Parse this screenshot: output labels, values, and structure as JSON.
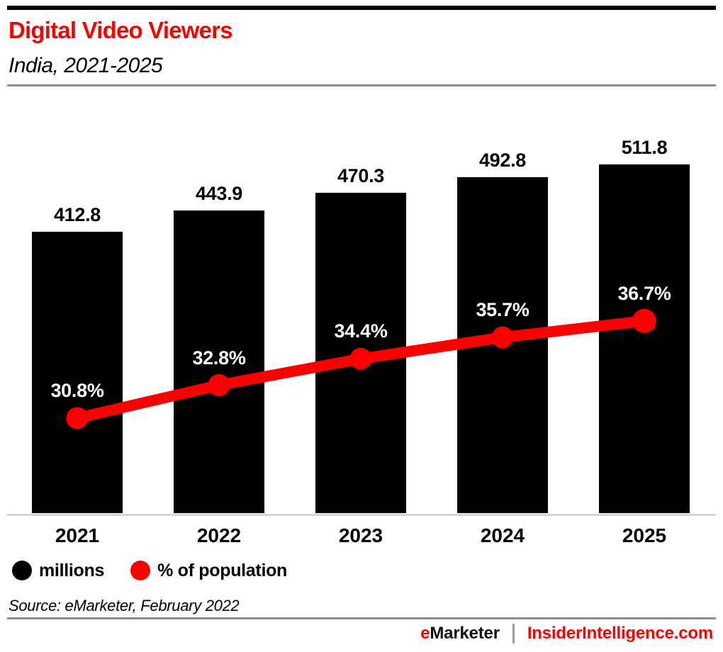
{
  "header": {
    "title": "Digital Video Viewers",
    "subtitle": "India, 2021-2025"
  },
  "legend": {
    "items": [
      {
        "label": "millions",
        "color": "#000000"
      },
      {
        "label": "% of population",
        "color": "#fa0000"
      }
    ]
  },
  "source": {
    "text": "Source: eMarketer, February 2022"
  },
  "footer": {
    "brand_first_letter": "e",
    "brand_rest": "Marketer",
    "separator_icon": "vertical-bar",
    "site": "InsiderIntelligence.com"
  },
  "colors": {
    "accent_red": "#fa0000",
    "bar_black": "#000000",
    "axis_line": "#cdd7e4",
    "divider_gray": "#8e8e8e",
    "value_label_white": "#ffffff"
  },
  "chart_data": {
    "type": "bar",
    "title": "Digital Video Viewers",
    "subtitle": "India, 2021-2025",
    "categories": [
      "2021",
      "2022",
      "2023",
      "2024",
      "2025"
    ],
    "series": [
      {
        "name": "millions",
        "type": "bar",
        "color": "#000000",
        "values": [
          412.8,
          443.9,
          470.3,
          492.8,
          511.8
        ]
      },
      {
        "name": "% of population",
        "type": "line",
        "color": "#fa0000",
        "values": [
          30.8,
          32.8,
          34.4,
          35.7,
          36.7
        ]
      }
    ],
    "bar_value_labels": [
      "412.8",
      "443.9",
      "470.3",
      "492.8",
      "511.8"
    ],
    "line_value_labels": [
      "30.8%",
      "32.8%",
      "34.4%",
      "35.7%",
      "36.7%"
    ],
    "xlabel": "",
    "ylabel": "",
    "grid": false,
    "legend_position": "bottom-left",
    "source": "Source: eMarketer, February 2022"
  }
}
